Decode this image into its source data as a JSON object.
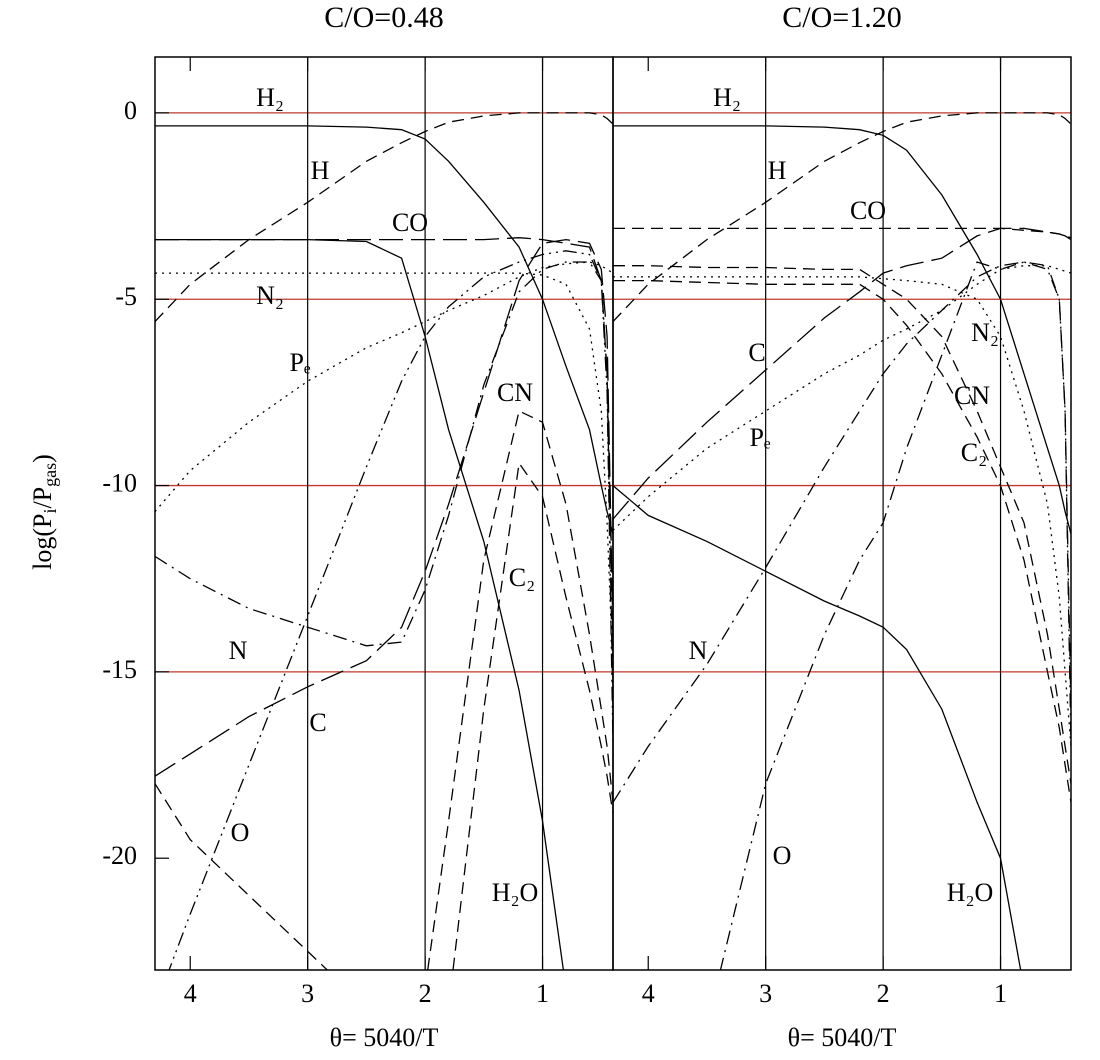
{
  "chart_data": [
    {
      "type": "line",
      "title": "C/O=0.48",
      "x_label": "θ= 5040/T",
      "y_label": [
        "log(P",
        "i",
        "/P",
        "gas",
        ")"
      ],
      "xlim": [
        4.3,
        0.4
      ],
      "xticks": [
        4,
        3,
        2,
        1
      ],
      "vlines": [
        3,
        2,
        1
      ],
      "ylim": [
        -23,
        1.5
      ],
      "yticks": [
        0,
        -5,
        -10,
        -15,
        -20
      ],
      "hlines": [
        0,
        -5,
        -10,
        -15
      ],
      "hline_color": "#c0392b",
      "x": [
        4.3,
        4,
        3.5,
        3,
        2.5,
        2.2,
        2,
        1.8,
        1.5,
        1.2,
        1,
        0.8,
        0.6,
        0.5,
        0.45,
        0.4
      ],
      "series": [
        {
          "name": "H₂",
          "style": "solid",
          "color": "#000000",
          "values": [
            -0.35,
            -0.35,
            -0.35,
            -0.35,
            -0.38,
            -0.45,
            -0.7,
            -1.3,
            -2.4,
            -3.6,
            -5,
            -6.8,
            -8.5,
            -10,
            -10.7,
            -11.3
          ]
        },
        {
          "name": "H",
          "style": "dashed",
          "color": "#000000",
          "values": [
            -5.6,
            -4.6,
            -3.4,
            -2.4,
            -1.3,
            -0.8,
            -0.5,
            -0.25,
            -0.08,
            0,
            0,
            0,
            0,
            -0.05,
            -0.15,
            -0.3
          ]
        },
        {
          "name": "CO",
          "style": "longdash",
          "color": "#000000",
          "values": [
            -3.4,
            -3.4,
            -3.4,
            -3.4,
            -3.4,
            -3.4,
            -3.4,
            -3.4,
            -3.4,
            -3.35,
            -3.4,
            -3.5,
            -3.6,
            -4.5,
            -7,
            -14
          ]
        },
        {
          "name": "H₂O",
          "style": "solid",
          "color": "#000000",
          "values": [
            -3.4,
            -3.4,
            -3.4,
            -3.4,
            -3.45,
            -3.9,
            -6,
            -8.5,
            -11.5,
            -15.5,
            -19,
            -23.5,
            null,
            null,
            null,
            null
          ]
        },
        {
          "name": "N₂",
          "style": "dotted",
          "color": "#000000",
          "values": [
            -4.3,
            -4.3,
            -4.3,
            -4.3,
            -4.3,
            -4.3,
            -4.3,
            -4.3,
            -4.3,
            -4.3,
            -4.35,
            -4.6,
            -5.8,
            -8,
            -11,
            -15
          ]
        },
        {
          "name": "Pₑ",
          "style": "dotted",
          "color": "#000000",
          "values": [
            -10.7,
            -9.6,
            -8.3,
            -7.2,
            -6.3,
            -5.9,
            -5.6,
            -5.3,
            -4.9,
            -4.4,
            -4.15,
            -4.05,
            -4,
            -4.1,
            -4.2,
            -4.3
          ]
        },
        {
          "name": "C",
          "style": "longdash",
          "color": "#000000",
          "values": [
            -17.8,
            -17.2,
            -16.2,
            -15.4,
            -14.7,
            -13.8,
            -12.3,
            -10.5,
            -7.5,
            -4.5,
            -3.5,
            -3.4,
            -3.5,
            -4.2,
            -6,
            -14
          ]
        },
        {
          "name": "N",
          "style": "dashdot",
          "color": "#000000",
          "values": [
            -11.9,
            -12.5,
            -13.3,
            -13.8,
            -14.3,
            -14.2,
            -12.8,
            -10.8,
            -7.3,
            -4.8,
            -4.2,
            -4,
            -4,
            -4.5,
            -7,
            -16
          ]
        },
        {
          "name": "O",
          "style": "dashdotdot",
          "color": "#000000",
          "values": [
            -24,
            -21.5,
            -17.5,
            -13.5,
            -9.5,
            -7.2,
            -6,
            -5.2,
            -4.4,
            -4,
            -3.8,
            -3.7,
            -3.8,
            -4.5,
            -7.5,
            -17
          ]
        },
        {
          "name": "CN",
          "style": "dashed",
          "color": "#000000",
          "values": [
            null,
            null,
            null,
            null,
            null,
            null,
            -23.5,
            -19,
            -12,
            -8,
            -8.3,
            -10.5,
            -14,
            -16,
            -17,
            -18.5
          ]
        },
        {
          "name": "C₂",
          "style": "dashed",
          "color": "#000000",
          "values": [
            null,
            null,
            null,
            null,
            null,
            null,
            null,
            -24,
            -16,
            -9.4,
            -10.3,
            -13,
            -15.5,
            -17,
            -17.8,
            -18.8
          ]
        },
        {
          "style": "dashed",
          "color": "#000000",
          "values": [
            -18,
            -19.5,
            -21,
            -22.5,
            -24,
            null,
            null,
            null,
            null,
            null,
            null,
            null,
            null,
            null,
            null,
            null
          ]
        }
      ]
    },
    {
      "type": "line",
      "title": "C/O=1.20",
      "x_label": "θ= 5040/T",
      "xlim": [
        4.3,
        0.4
      ],
      "xticks": [
        4,
        3,
        2,
        1
      ],
      "vlines": [
        3,
        2,
        1
      ],
      "ylim": [
        -23,
        1.5
      ],
      "hlines": [
        0,
        -5,
        -10,
        -15
      ],
      "hline_color": "#c0392b",
      "x": [
        4.3,
        4,
        3.5,
        3,
        2.5,
        2.2,
        2,
        1.8,
        1.5,
        1.2,
        1,
        0.8,
        0.6,
        0.5,
        0.45,
        0.4
      ],
      "series": [
        {
          "name": "H₂",
          "style": "solid",
          "color": "#000000",
          "values": [
            -0.35,
            -0.35,
            -0.35,
            -0.35,
            -0.38,
            -0.45,
            -0.6,
            -1,
            -2.2,
            -3.8,
            -5,
            -7,
            -9,
            -10,
            -10.7,
            -11.3
          ]
        },
        {
          "name": "H",
          "style": "dashed",
          "color": "#000000",
          "values": [
            -5.6,
            -4.6,
            -3.4,
            -2.4,
            -1.3,
            -0.8,
            -0.5,
            -0.25,
            -0.08,
            0,
            0,
            0,
            0,
            -0.05,
            -0.15,
            -0.3
          ]
        },
        {
          "name": "CO",
          "style": "dashed",
          "color": "#000000",
          "values": [
            -3.1,
            -3.1,
            -3.1,
            -3.1,
            -3.1,
            -3.1,
            -3.1,
            -3.1,
            -3.1,
            -3.1,
            -3.1,
            -3.15,
            -3.2,
            -3.25,
            -3.3,
            -3.35
          ]
        },
        {
          "name": "H₂O",
          "style": "solid",
          "color": "#000000",
          "values": [
            -10,
            -10.8,
            -11.5,
            -12.3,
            -13.1,
            -13.5,
            -13.8,
            -14.4,
            -16,
            -18.5,
            -20,
            -23.5,
            null,
            null,
            null,
            null
          ]
        },
        {
          "name": "N₂",
          "style": "dotted",
          "color": "#000000",
          "values": [
            -4.4,
            -4.4,
            -4.4,
            -4.4,
            -4.4,
            -4.4,
            -4.45,
            -4.5,
            -4.6,
            -5,
            -6,
            -8,
            -10.5,
            -13,
            -15,
            -17
          ]
        },
        {
          "name": "Pₑ",
          "style": "dotted",
          "color": "#000000",
          "values": [
            -11.2,
            -10.3,
            -9,
            -8,
            -7,
            -6.5,
            -6.1,
            -5.8,
            -5.3,
            -4.6,
            -4.2,
            -4.1,
            -4.1,
            -4.2,
            -4.25,
            -4.3
          ]
        },
        {
          "name": "C",
          "style": "longdash",
          "color": "#000000",
          "values": [
            -10.9,
            -9.8,
            -8.3,
            -6.9,
            -5.5,
            -4.8,
            -4.3,
            -4.1,
            -3.9,
            -3.3,
            -3.1,
            -3.1,
            -3.2,
            -3.25,
            -3.3,
            -3.4
          ]
        },
        {
          "name": "N",
          "style": "dashdot",
          "color": "#000000",
          "values": [
            -18.5,
            -17,
            -14.8,
            -12.2,
            -9.5,
            -8,
            -7,
            -6.2,
            -5.3,
            -4.4,
            -4.1,
            -4,
            -4.2,
            -5,
            -8,
            -16
          ]
        },
        {
          "name": "O",
          "style": "dashdot",
          "color": "#000000",
          "values": [
            null,
            null,
            -24.5,
            -18,
            -14,
            -12,
            -11,
            -9,
            -6.5,
            -4,
            -4.2,
            -4,
            -4.1,
            -5,
            -8,
            -17
          ]
        },
        {
          "name": "CN",
          "style": "dashed",
          "color": "#000000",
          "values": [
            -4.1,
            -4.1,
            -4.15,
            -4.15,
            -4.2,
            -4.2,
            -4.6,
            -5,
            -6,
            -8,
            -9.5,
            -11,
            -14,
            -16,
            -17,
            -18
          ]
        },
        {
          "name": "C₂",
          "style": "dashed",
          "color": "#000000",
          "values": [
            -4.5,
            -4.5,
            -4.55,
            -4.6,
            -4.6,
            -4.6,
            -5,
            -5.7,
            -7,
            -8.7,
            -10,
            -12,
            -15,
            -16.5,
            -17.5,
            -18.5
          ]
        }
      ]
    }
  ]
}
